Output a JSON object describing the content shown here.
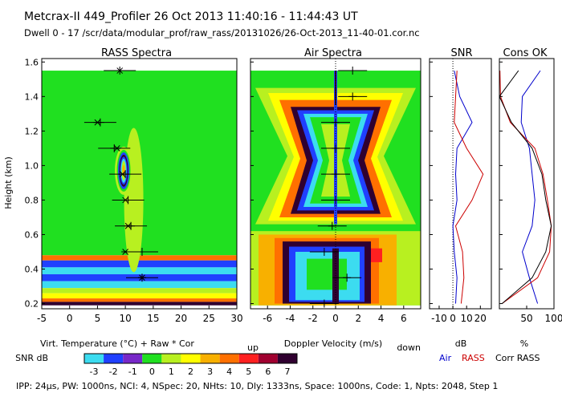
{
  "header": {
    "line1": "Metcrax-II  449_Profiler  26 Oct 2013  11:40:16 - 11:44:43 UT",
    "line2": "Dwell  0 - 17  /scr/data/modular_prof/raw_rass/20131026/26-Oct-2013_11-40-01.cor.nc"
  },
  "footer": "IPP: 24µs, PW: 1000ns, NCI: 4, NSpec: 20, NHts: 10, Dly: 1333ns, Space: 1000ns, Code: 1, Npts: 2048, Step 1",
  "colors": {
    "snr_scale": [
      "#3cdcf0",
      "#2040ff",
      "#7828c8",
      "#20e020",
      "#b8f020",
      "#ffff00",
      "#f8b000",
      "#ff7000",
      "#ff2020",
      "#a00030",
      "#300030"
    ],
    "air": "#0000cc",
    "rass": "#cc0000",
    "corr": "#000000"
  },
  "chart_data": [
    {
      "type": "heatmap",
      "title": "RASS Spectra",
      "ylabel": "Height (km)",
      "xlabel": "Virt. Temperature (°C)  + Raw  * Cor",
      "xlim": [
        -5,
        30
      ],
      "ylim": [
        0.17,
        1.62
      ],
      "xticks": [
        -5,
        0,
        5,
        10,
        15,
        20,
        25,
        30
      ],
      "yticks": [
        0.2,
        0.4,
        0.6,
        0.8,
        1.0,
        1.2,
        1.4,
        1.6
      ],
      "raw_points": [
        {
          "h": 1.55,
          "t": 9.0
        },
        {
          "h": 1.25,
          "t": 5.5
        },
        {
          "h": 1.1,
          "t": 8.0
        },
        {
          "h": 0.95,
          "t": 10.0
        },
        {
          "h": 0.8,
          "t": 10.5
        },
        {
          "h": 0.65,
          "t": 11.0
        },
        {
          "h": 0.5,
          "t": 13.0
        },
        {
          "h": 0.35,
          "t": 13.0
        }
      ],
      "cor_points": [
        {
          "h": 1.55,
          "t": 9.0
        },
        {
          "h": 1.25,
          "t": 5.0
        },
        {
          "h": 1.1,
          "t": 8.5
        },
        {
          "h": 0.95,
          "t": 9.5
        },
        {
          "h": 0.8,
          "t": 10.0
        },
        {
          "h": 0.65,
          "t": 10.5
        },
        {
          "h": 0.5,
          "t": 10.0
        },
        {
          "h": 0.35,
          "t": 13.0
        }
      ]
    },
    {
      "type": "heatmap",
      "title": "Air Spectra",
      "xlabel": "Doppler Velocity (m/s)",
      "left_label": "up",
      "right_label": "down",
      "xlim": [
        -7.5,
        7.5
      ],
      "ylim": [
        0.17,
        1.62
      ],
      "xticks": [
        -6,
        -4,
        -2,
        0,
        2,
        4,
        6
      ],
      "points": [
        {
          "h": 1.55,
          "v": 1.5
        },
        {
          "h": 1.4,
          "v": 1.5
        },
        {
          "h": 1.25,
          "v": 0.0
        },
        {
          "h": 1.1,
          "v": 0.0
        },
        {
          "h": 0.95,
          "v": 0.0
        },
        {
          "h": 0.8,
          "v": 0.0
        },
        {
          "h": 0.65,
          "v": -0.3
        },
        {
          "h": 0.5,
          "v": -1.0
        },
        {
          "h": 0.35,
          "v": 1.0
        },
        {
          "h": 0.2,
          "v": -1.0
        }
      ]
    },
    {
      "type": "line",
      "title": "SNR",
      "xlabel": "dB",
      "xlim": [
        -17,
        28
      ],
      "ylim": [
        0.17,
        1.62
      ],
      "xticks": [
        -10,
        0,
        10,
        20
      ],
      "xticklabels": [
        "-10",
        "0",
        "10",
        "20"
      ],
      "series": [
        {
          "name": "Air",
          "h": [
            0.2,
            0.35,
            0.5,
            0.65,
            0.8,
            0.95,
            1.1,
            1.25,
            1.4,
            1.55
          ],
          "snr": [
            2,
            3,
            1,
            0,
            3,
            2,
            3,
            14,
            5,
            1
          ]
        },
        {
          "name": "RASS",
          "h": [
            0.2,
            0.35,
            0.5,
            0.65,
            0.8,
            0.95,
            1.1,
            1.25,
            1.4,
            1.55
          ],
          "snr": [
            6,
            8,
            7,
            2,
            14,
            22,
            10,
            1,
            2,
            3
          ]
        }
      ]
    },
    {
      "type": "line",
      "title": "Cons OK",
      "xlabel": "%",
      "xlim": [
        0,
        100
      ],
      "ylim": [
        0.17,
        1.62
      ],
      "xticks": [
        50,
        100
      ],
      "series": [
        {
          "name": "Air",
          "h": [
            0.2,
            0.35,
            0.5,
            0.65,
            0.8,
            0.95,
            1.1,
            1.25,
            1.4,
            1.55
          ],
          "pct": [
            70,
            55,
            42,
            60,
            65,
            60,
            55,
            40,
            42,
            75
          ]
        },
        {
          "name": "RASS",
          "h": [
            0.2,
            0.35,
            0.5,
            0.65,
            0.8,
            0.95,
            1.1,
            1.25,
            1.4,
            1.55
          ],
          "pct": [
            5,
            70,
            92,
            95,
            88,
            80,
            65,
            20,
            2,
            1
          ]
        },
        {
          "name": "Corr",
          "h": [
            0.2,
            0.35,
            0.5,
            0.65,
            0.8,
            0.95,
            1.1,
            1.25,
            1.4,
            1.55
          ],
          "pct": [
            5,
            60,
            85,
            95,
            85,
            78,
            60,
            22,
            0,
            35
          ]
        }
      ]
    },
    {
      "type": "colorbar",
      "label": "SNR dB",
      "ticks": [
        "-3",
        "-2",
        "-1",
        "0",
        "1",
        "2",
        "3",
        "4",
        "5",
        "6",
        "7"
      ]
    }
  ],
  "legend": {
    "air": "Air",
    "rass": "RASS",
    "corr": "Corr RASS"
  }
}
